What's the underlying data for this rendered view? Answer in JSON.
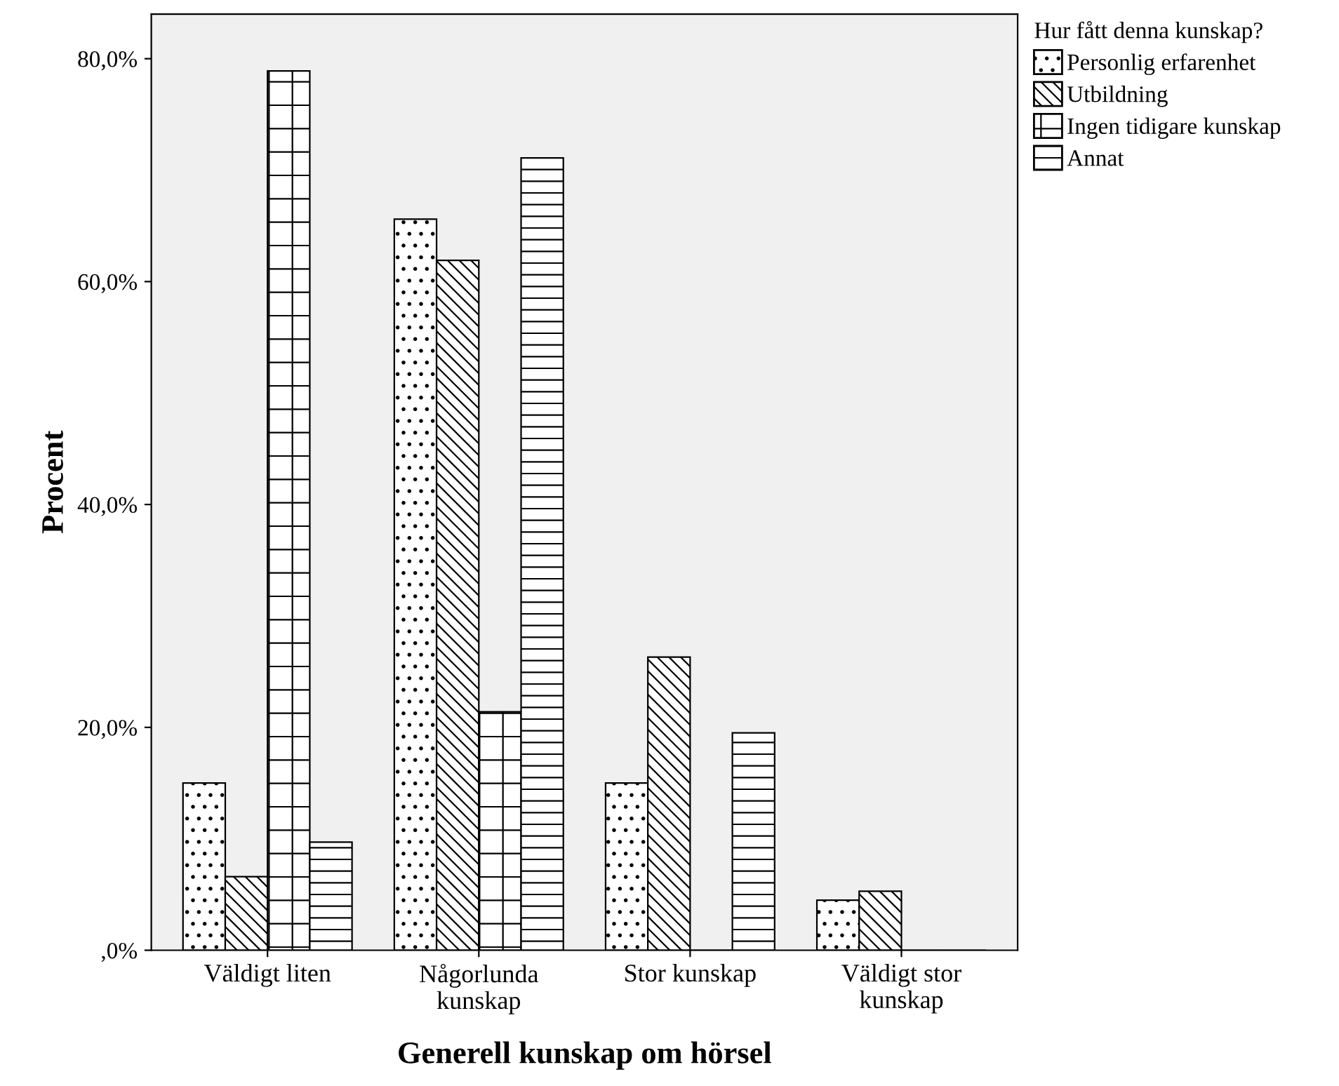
{
  "chart_data": {
    "type": "bar",
    "xlabel": "Generell kunskap om hörsel",
    "ylabel": "Procent",
    "legend_title": "Hur fått denna kunskap?",
    "categories": [
      "Väldigt liten",
      "Någorlunda\nkunskap",
      "Stor kunskap",
      "Väldigt stor\nkunskap"
    ],
    "series": [
      {
        "name": "Personlig erfarenhet",
        "color": "#000000",
        "values": [
          15.0,
          65.6,
          15.0,
          4.5
        ]
      },
      {
        "name": "Utbildning",
        "color": "#000000",
        "values": [
          6.6,
          61.9,
          26.3,
          5.3
        ]
      },
      {
        "name": "Ingen tidigare kunskap",
        "color": "#000000",
        "values": [
          78.9,
          21.4,
          0,
          0
        ]
      },
      {
        "name": "Annat",
        "color": "#000000",
        "values": [
          9.7,
          71.1,
          19.5,
          0
        ]
      }
    ],
    "ylim": [
      0,
      84
    ],
    "yticks": [
      {
        "value": 0,
        "label": ",0%"
      },
      {
        "value": 20,
        "label": "20,0%"
      },
      {
        "value": 40,
        "label": "40,0%"
      },
      {
        "value": 60,
        "label": "60,0%"
      },
      {
        "value": 80,
        "label": "80,0%"
      }
    ],
    "legend": "top right",
    "grid": false
  }
}
